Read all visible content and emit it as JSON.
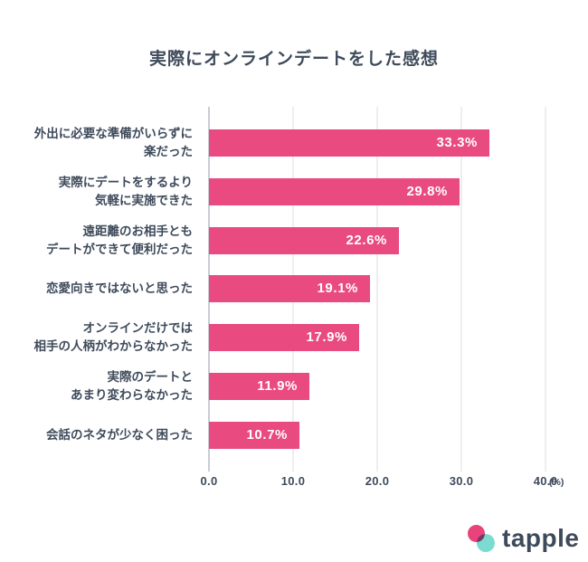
{
  "chart_data": {
    "type": "bar",
    "orientation": "horizontal",
    "title": "実際にオンラインデートをした感想",
    "categories": [
      [
        "外出に必要な準備がいらずに",
        "楽だった"
      ],
      [
        "実際にデートをするより",
        "気軽に実施できた"
      ],
      [
        "遠距離のお相手とも",
        "デートができて便利だった"
      ],
      [
        "恋愛向きではないと思った"
      ],
      [
        "オンラインだけでは",
        "相手の人柄がわからなかった"
      ],
      [
        "実際のデートと",
        "あまり変わらなかった"
      ],
      [
        "会話のネタが少なく困った"
      ]
    ],
    "values": [
      33.3,
      29.8,
      22.6,
      19.1,
      17.9,
      11.9,
      10.7
    ],
    "value_labels": [
      "33.3%",
      "29.8%",
      "22.6%",
      "19.1%",
      "17.9%",
      "11.9%",
      "10.7%"
    ],
    "x_ticks": [
      "0.0",
      "10.0",
      "20.0",
      "30.0",
      "40.0"
    ],
    "xlim": [
      0,
      40
    ],
    "unit_label": "(%)",
    "grid": true,
    "legend": "none",
    "bar_color": "#E94A80",
    "value_text_color": "#FFFFFF"
  },
  "logo": {
    "text": "tapple",
    "pink_color": "#E8437A",
    "teal_color": "#7CDBD1",
    "text_color": "#3E4A5B"
  },
  "colors": {
    "background": "#FFFFFF",
    "text": "#3E4A5B",
    "grid": "#EEEEF1",
    "axis": "#C9CDD4"
  }
}
